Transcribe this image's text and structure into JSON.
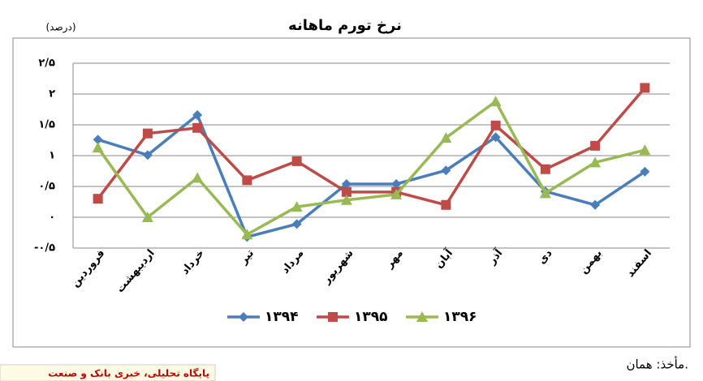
{
  "chart_data": {
    "type": "line",
    "title": "نرخ تورم ماهانه",
    "unit_label": "(درصد)",
    "categories": [
      "فروردین",
      "اردیبهشت",
      "خرداد",
      "تیر",
      "مرداد",
      "شهریور",
      "مهر",
      "آبان",
      "آذر",
      "دی",
      "بهمن",
      "اسفند"
    ],
    "series": [
      {
        "name": "۱۳۹۴",
        "color": "#4a7ebb",
        "marker": "diamond",
        "values": [
          1.26,
          1.01,
          1.66,
          -0.32,
          -0.11,
          0.54,
          0.54,
          0.76,
          1.3,
          0.42,
          0.2,
          0.74
        ]
      },
      {
        "name": "۱۳۹۵",
        "color": "#be4b48",
        "marker": "square",
        "values": [
          0.3,
          1.36,
          1.45,
          0.6,
          0.91,
          0.41,
          0.41,
          0.2,
          1.49,
          0.78,
          1.16,
          2.1
        ]
      },
      {
        "name": "۱۳۹۶",
        "color": "#98b954",
        "marker": "triangle",
        "values": [
          1.13,
          0,
          0.64,
          -0.28,
          0.17,
          0.28,
          0.37,
          1.29,
          1.88,
          0.39,
          0.89,
          1.09
        ]
      }
    ],
    "ylim": [
      -0.5,
      2.5
    ],
    "yticks": [
      {
        "value": -0.5,
        "label": "-۰/۵"
      },
      {
        "value": 0,
        "label": "۰"
      },
      {
        "value": 0.5,
        "label": "۰/۵"
      },
      {
        "value": 1,
        "label": "۱"
      },
      {
        "value": 1.5,
        "label": "۱/۵"
      },
      {
        "value": 2,
        "label": "۲"
      },
      {
        "value": 2.5,
        "label": "۲/۵"
      }
    ],
    "grid": true,
    "legend": "bottom",
    "source": "مأخذ: همان.",
    "footer": "پایگاه تحلیلی، خبری بانک و صنعت"
  }
}
